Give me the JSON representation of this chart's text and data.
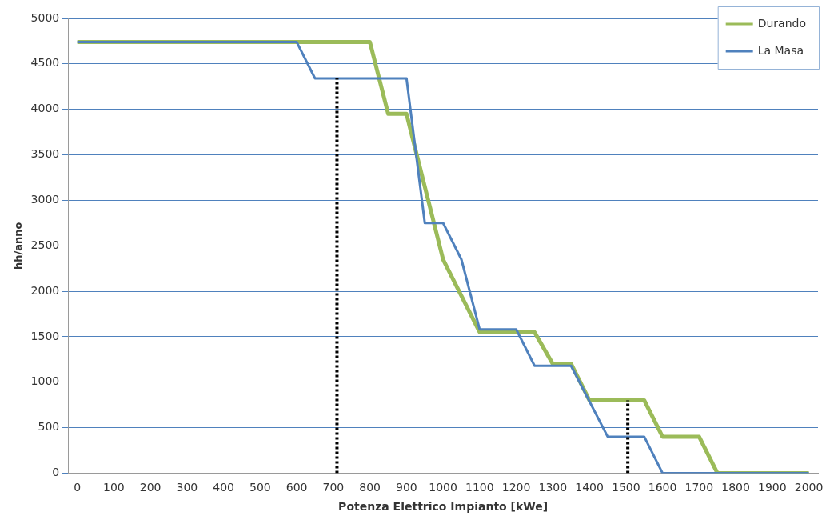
{
  "chart_data": {
    "type": "line",
    "xlabel": "Potenza Elettrico Impianto [kWe]",
    "ylabel": "hh/anno",
    "xlim": [
      -25,
      2025
    ],
    "xticks": [
      0,
      100,
      200,
      300,
      400,
      500,
      600,
      700,
      800,
      900,
      1000,
      1100,
      1200,
      1300,
      1400,
      1500,
      1600,
      1700,
      1800,
      1900,
      2000
    ],
    "ylim": [
      0,
      5000
    ],
    "yticks": [
      0,
      500,
      1000,
      1500,
      2000,
      2500,
      3000,
      3500,
      4000,
      4500,
      5000
    ],
    "grid": "y",
    "legend": "top right",
    "marker": "none",
    "line_style": "solid",
    "series": [
      {
        "name": "Durando",
        "color": "#9bbb59",
        "x": [
          0,
          800,
          850,
          900,
          950,
          1000,
          1100,
          1250,
          1300,
          1350,
          1400,
          1550,
          1600,
          1700,
          1750,
          2000
        ],
        "values": [
          4740,
          4740,
          3950,
          3950,
          3150,
          2350,
          1550,
          1550,
          1200,
          1200,
          800,
          800,
          400,
          400,
          0,
          0
        ]
      },
      {
        "name": "La Masa",
        "color": "#4f81bd",
        "x": [
          0,
          600,
          650,
          900,
          950,
          1000,
          1050,
          1100,
          1200,
          1250,
          1350,
          1450,
          1550,
          1600,
          2000
        ],
        "values": [
          4740,
          4740,
          4340,
          4340,
          2750,
          2750,
          2350,
          1580,
          1580,
          1180,
          1180,
          400,
          400,
          0,
          0
        ]
      },
      {
        "type": "line",
        "color": "#000000",
        "line_style": "dotted",
        "x": [
          710,
          710
        ],
        "values": [
          0,
          4340
        ]
      },
      {
        "type": "line",
        "color": "#000000",
        "line_style": "dotted",
        "x": [
          1505,
          1505
        ],
        "values": [
          0,
          800
        ]
      }
    ]
  }
}
